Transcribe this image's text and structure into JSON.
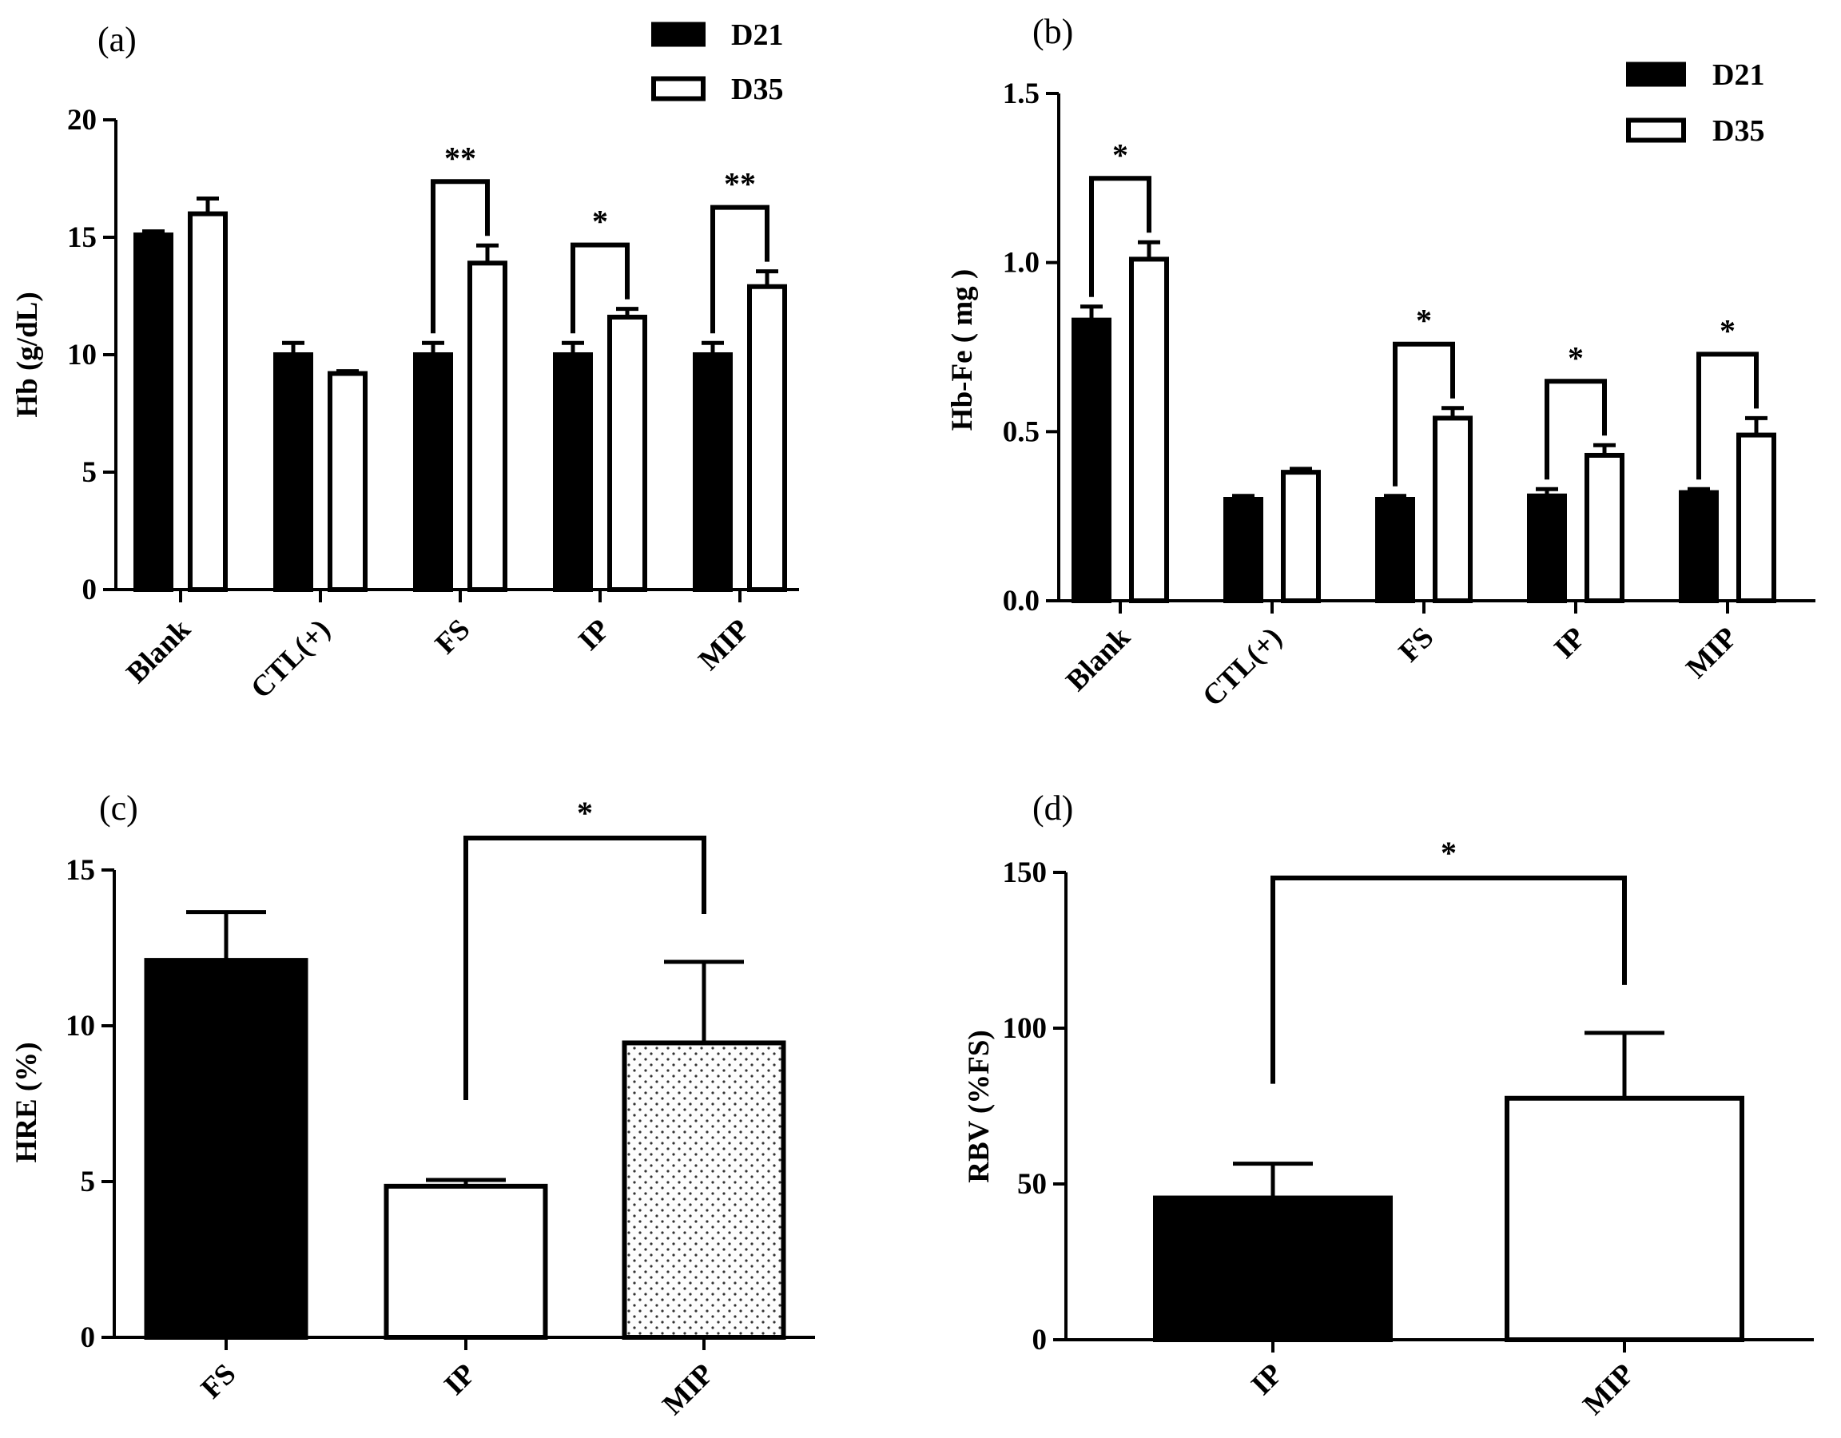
{
  "colors": {
    "d21": "#000000",
    "d35": "#ffffff",
    "stroke": "#000000"
  },
  "chart_data": [
    {
      "id": "a",
      "panel": "(a)",
      "type": "bar",
      "ylabel": "Hb (g/dL)",
      "ylim": [
        0,
        20
      ],
      "yticks": [
        "0",
        "5",
        "10",
        "15",
        "20"
      ],
      "categories": [
        "Blank",
        "CTL(+)",
        "FS",
        "IP",
        "MIP"
      ],
      "series": [
        {
          "name": "D21",
          "values": [
            15.1,
            10.0,
            10.0,
            10.0,
            10.0
          ],
          "errors": [
            0.15,
            0.5,
            0.5,
            0.5,
            0.5
          ],
          "pattern": "solid"
        },
        {
          "name": "D35",
          "values": [
            16.0,
            9.2,
            13.9,
            11.6,
            12.9
          ],
          "errors": [
            0.65,
            0.1,
            0.75,
            0.35,
            0.65
          ],
          "pattern": "white"
        }
      ],
      "significance": [
        {
          "category": "FS",
          "label": "**",
          "pair": [
            0,
            1
          ]
        },
        {
          "category": "IP",
          "label": "*",
          "pair": [
            0,
            1
          ]
        },
        {
          "category": "MIP",
          "label": "**",
          "pair": [
            0,
            1
          ]
        }
      ],
      "legend": {
        "position": "top-right",
        "entries": [
          "D21",
          "D35"
        ]
      }
    },
    {
      "id": "b",
      "panel": "(b)",
      "type": "bar",
      "ylabel": "Hb-Fe ( mg )",
      "ylim": [
        0,
        1.5
      ],
      "yticks": [
        "0.0",
        "0.5",
        "1.0",
        "1.5"
      ],
      "categories": [
        "Blank",
        "CTL(+)",
        "FS",
        "IP",
        "MIP"
      ],
      "series": [
        {
          "name": "D21",
          "values": [
            0.83,
            0.3,
            0.3,
            0.31,
            0.32
          ],
          "errors": [
            0.04,
            0.01,
            0.01,
            0.02,
            0.01
          ],
          "pattern": "solid"
        },
        {
          "name": "D35",
          "values": [
            1.01,
            0.38,
            0.54,
            0.43,
            0.49
          ],
          "errors": [
            0.05,
            0.01,
            0.03,
            0.03,
            0.05
          ],
          "pattern": "white"
        }
      ],
      "significance": [
        {
          "category": "Blank",
          "label": "*",
          "pair": [
            0,
            1
          ]
        },
        {
          "category": "FS",
          "label": "*",
          "pair": [
            0,
            1
          ]
        },
        {
          "category": "IP",
          "label": "*",
          "pair": [
            0,
            1
          ]
        },
        {
          "category": "MIP",
          "label": "*",
          "pair": [
            0,
            1
          ]
        }
      ],
      "legend": {
        "position": "top-right",
        "entries": [
          "D21",
          "D35"
        ]
      }
    },
    {
      "id": "c",
      "panel": "(c)",
      "type": "bar",
      "ylabel": "HRE (%)",
      "ylim": [
        0,
        15
      ],
      "yticks": [
        "0",
        "5",
        "10",
        "15"
      ],
      "categories": [
        "FS",
        "IP",
        "MIP"
      ],
      "values": [
        12.1,
        4.85,
        9.45
      ],
      "errors": [
        1.55,
        0.2,
        2.6
      ],
      "patterns": [
        "solid",
        "white",
        "dotted"
      ],
      "significance": [
        {
          "from": "IP",
          "to": "MIP",
          "label": "*"
        }
      ]
    },
    {
      "id": "d",
      "panel": "(d)",
      "type": "bar",
      "ylabel": "RBV (%FS)",
      "ylim": [
        0,
        150
      ],
      "yticks": [
        "0",
        "50",
        "100",
        "150"
      ],
      "categories": [
        "IP",
        "MIP"
      ],
      "values": [
        45.5,
        77.5
      ],
      "errors": [
        11.0,
        21.0
      ],
      "patterns": [
        "solid",
        "white"
      ],
      "significance": [
        {
          "from": "IP",
          "to": "MIP",
          "label": "*"
        }
      ]
    }
  ]
}
